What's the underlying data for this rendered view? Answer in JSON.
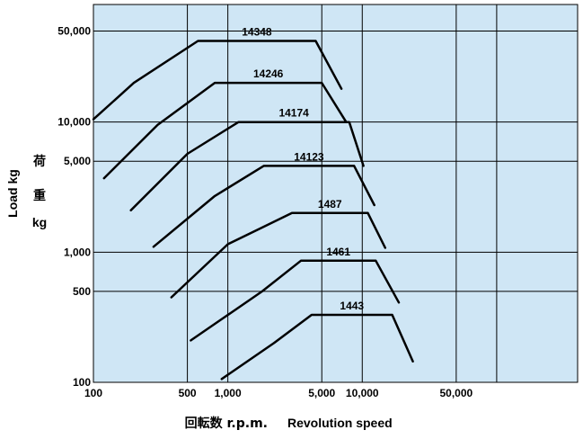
{
  "chart_data": {
    "type": "line",
    "x_scale": "log",
    "y_scale": "log",
    "xlim": [
      100,
      400000
    ],
    "ylim": [
      100,
      80000
    ],
    "xlabel_ja": "回転数 r.p.m.",
    "xlabel_en": "Revolution speed",
    "ylabel_en": "Load  kg",
    "ylabel_ja_chars": [
      "荷",
      "重",
      "kg"
    ],
    "x_ticks": [
      {
        "value": 100,
        "label": "100"
      },
      {
        "value": 500,
        "label": "500"
      },
      {
        "value": 1000,
        "label": "1,000"
      },
      {
        "value": 5000,
        "label": "5,000"
      },
      {
        "value": 10000,
        "label": "10,000"
      },
      {
        "value": 50000,
        "label": "50,000"
      }
    ],
    "x_gridlines": [
      100,
      500,
      1000,
      5000,
      10000,
      50000,
      100000
    ],
    "y_ticks": [
      {
        "value": 100,
        "label": "100"
      },
      {
        "value": 500,
        "label": "500"
      },
      {
        "value": 1000,
        "label": "1,000"
      },
      {
        "value": 5000,
        "label": "5,000"
      },
      {
        "value": 10000,
        "label": "10,000"
      },
      {
        "value": 50000,
        "label": "50,000"
      }
    ],
    "y_gridlines": [
      100,
      500,
      1000,
      5000,
      10000,
      50000
    ],
    "colors": {
      "plot_background": "#cfe6f5",
      "line": "#000000",
      "grid": "#000000"
    },
    "series": [
      {
        "name": "14348",
        "points": [
          [
            100,
            10500
          ],
          [
            200,
            20000
          ],
          [
            600,
            42000
          ],
          [
            4500,
            42000
          ],
          [
            7000,
            18000
          ]
        ]
      },
      {
        "name": "14246",
        "points": [
          [
            120,
            3700
          ],
          [
            300,
            9500
          ],
          [
            800,
            20000
          ],
          [
            5000,
            20000
          ],
          [
            7600,
            10000
          ]
        ]
      },
      {
        "name": "14174",
        "points": [
          [
            190,
            2100
          ],
          [
            500,
            5700
          ],
          [
            1200,
            10000
          ],
          [
            8000,
            10000
          ],
          [
            10200,
            4600
          ]
        ]
      },
      {
        "name": "14123",
        "points": [
          [
            280,
            1100
          ],
          [
            800,
            2700
          ],
          [
            1850,
            4600
          ],
          [
            8700,
            4600
          ],
          [
            12300,
            2300
          ]
        ]
      },
      {
        "name": "1487",
        "points": [
          [
            380,
            450
          ],
          [
            1000,
            1150
          ],
          [
            3000,
            2000
          ],
          [
            11000,
            2000
          ],
          [
            14800,
            1080
          ]
        ]
      },
      {
        "name": "1461",
        "points": [
          [
            530,
            210
          ],
          [
            1800,
            500
          ],
          [
            3500,
            860
          ],
          [
            12600,
            860
          ],
          [
            18700,
            410
          ]
        ]
      },
      {
        "name": "1443",
        "points": [
          [
            900,
            106
          ],
          [
            2200,
            200
          ],
          [
            4200,
            330
          ],
          [
            16700,
            330
          ],
          [
            23800,
            145
          ]
        ]
      }
    ]
  }
}
